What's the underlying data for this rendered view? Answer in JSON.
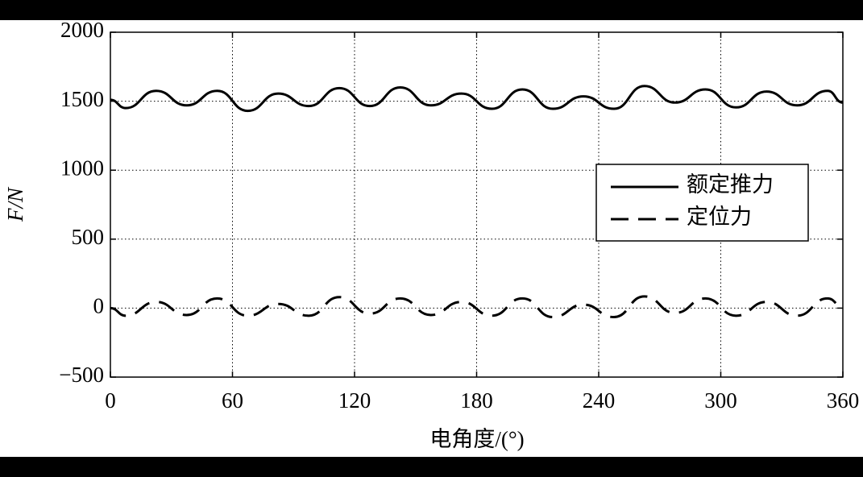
{
  "chart_data": {
    "type": "line",
    "x_label": "电角度/(°)",
    "y_label": "F/N",
    "x": [
      0,
      7.5,
      22.5,
      37.5,
      52.5,
      67.5,
      82.5,
      97.5,
      112.5,
      127.5,
      142.5,
      157.5,
      172.5,
      187.5,
      202.5,
      217.5,
      232.5,
      247.5,
      262.5,
      277.5,
      292.5,
      307.5,
      322.5,
      337.5,
      352.5,
      360
    ],
    "series": [
      {
        "name": "额定推力",
        "color": "#000000",
        "dash": "solid",
        "values": [
          1510,
          1450,
          1575,
          1470,
          1575,
          1430,
          1555,
          1465,
          1595,
          1465,
          1600,
          1470,
          1555,
          1445,
          1585,
          1445,
          1535,
          1445,
          1610,
          1490,
          1585,
          1455,
          1570,
          1470,
          1575,
          1490
        ]
      },
      {
        "name": "定位力",
        "color": "#000000",
        "dash": "dashed",
        "values": [
          0,
          -55,
          45,
          -50,
          70,
          -55,
          30,
          -55,
          80,
          -40,
          70,
          -50,
          45,
          -55,
          70,
          -65,
          25,
          -65,
          85,
          -35,
          70,
          -55,
          45,
          -55,
          70,
          10
        ]
      }
    ],
    "xlim": [
      0,
      360
    ],
    "xticks": [
      0,
      60,
      120,
      180,
      240,
      300,
      360
    ],
    "ylim": [
      -500,
      2000
    ],
    "yticks": [
      {
        "value": -500,
        "label": "−500"
      },
      0,
      500,
      1000,
      1500,
      2000
    ],
    "grid": true,
    "legend": "right"
  }
}
